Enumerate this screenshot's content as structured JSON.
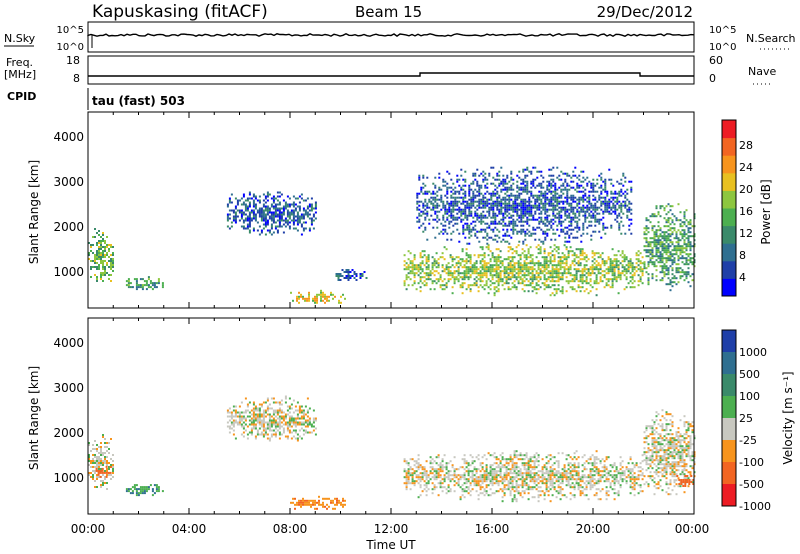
{
  "header": {
    "station": "Kapuskasing (fitACF)",
    "beam": "Beam 15",
    "date": "29/Dec/2012"
  },
  "nsky_panel": {
    "left_label": "N.Sky",
    "ticks": [
      "10^5",
      "10^0"
    ],
    "right_label": "N.Search",
    "right_ticks": [
      "10^5",
      "10^0"
    ]
  },
  "freq_panel": {
    "left_label_line1": "Freq.",
    "left_label_line2": "[MHz]",
    "ticks": [
      "18",
      "8"
    ],
    "right_label": "Nave",
    "right_ticks": [
      "60",
      "0"
    ]
  },
  "cpid_panel": {
    "left_label": "CPID",
    "text": "tau (fast) 503"
  },
  "x_axis": {
    "label": "Time UT",
    "ticks": [
      "00:00",
      "04:00",
      "08:00",
      "12:00",
      "16:00",
      "20:00",
      "00:00"
    ]
  },
  "power_panel": {
    "ylabel": "Slant Range [km]",
    "yticks": [
      "4000",
      "3000",
      "2000",
      "1000"
    ],
    "colorbar_label": "Power [dB]",
    "colorbar_ticks": [
      "28",
      "24",
      "20",
      "16",
      "12",
      "8",
      "4"
    ],
    "colors": [
      "#0000ff",
      "#1f3fa8",
      "#2f6f90",
      "#3a8a6a",
      "#4caf50",
      "#8dc63f",
      "#e8c020",
      "#f7941d",
      "#f26522",
      "#ed1c24"
    ]
  },
  "velocity_panel": {
    "ylabel": "Slant Range [km]",
    "yticks": [
      "4000",
      "3000",
      "2000",
      "1000"
    ],
    "colorbar_label": "Velocity [m s⁻¹]",
    "colorbar_ticks": [
      "1000",
      "500",
      "100",
      "25",
      "-25",
      "-100",
      "-500",
      "-1000"
    ],
    "colors": [
      "#1f3fa8",
      "#2f6f90",
      "#3a8a6a",
      "#4caf50",
      "#c8c8c0",
      "#f7941d",
      "#f26522",
      "#ed1c24"
    ]
  },
  "chart_data": [
    {
      "type": "heatmap",
      "title": "Power",
      "xlabel": "Time UT",
      "ylabel": "Slant Range [km]",
      "xlim": [
        0,
        24
      ],
      "ylim": [
        200,
        4500
      ],
      "colorbar": {
        "label": "Power [dB]",
        "range": [
          0,
          30
        ]
      },
      "regions": [
        {
          "t_start": 0.0,
          "t_end": 1.0,
          "range_lo": 700,
          "range_hi": 2000,
          "value": 14
        },
        {
          "t_start": 1.5,
          "t_end": 3.0,
          "range_lo": 600,
          "range_hi": 900,
          "value": 12
        },
        {
          "t_start": 5.5,
          "t_end": 9.0,
          "range_lo": 1800,
          "range_hi": 2800,
          "value": 6
        },
        {
          "t_start": 8.0,
          "t_end": 10.2,
          "range_lo": 300,
          "range_hi": 600,
          "value": 18
        },
        {
          "t_start": 9.8,
          "t_end": 11.0,
          "range_lo": 800,
          "range_hi": 1100,
          "value": 6
        },
        {
          "t_start": 12.5,
          "t_end": 22.0,
          "range_lo": 500,
          "range_hi": 1600,
          "value": 16
        },
        {
          "t_start": 13.0,
          "t_end": 21.5,
          "range_lo": 1600,
          "range_hi": 3300,
          "value": 6
        },
        {
          "t_start": 22.0,
          "t_end": 24.0,
          "range_lo": 600,
          "range_hi": 2500,
          "value": 12
        }
      ]
    },
    {
      "type": "heatmap",
      "title": "Velocity",
      "xlabel": "Time UT",
      "ylabel": "Slant Range [km]",
      "xlim": [
        0,
        24
      ],
      "ylim": [
        200,
        4500
      ],
      "colorbar": {
        "label": "Velocity [m s⁻¹]",
        "range": [
          -1000,
          1000
        ]
      },
      "regions": [
        {
          "t_start": 0.0,
          "t_end": 1.0,
          "range_lo": 700,
          "range_hi": 2000,
          "value": 0
        },
        {
          "t_start": 0.3,
          "t_end": 0.9,
          "range_lo": 1000,
          "range_hi": 1300,
          "value": -300
        },
        {
          "t_start": 1.5,
          "t_end": 3.0,
          "range_lo": 600,
          "range_hi": 900,
          "value": 80
        },
        {
          "t_start": 5.5,
          "t_end": 9.0,
          "range_lo": 1800,
          "range_hi": 2800,
          "value": 0
        },
        {
          "t_start": 8.0,
          "t_end": 10.2,
          "range_lo": 300,
          "range_hi": 600,
          "value": -80
        },
        {
          "t_start": 12.5,
          "t_end": 22.0,
          "range_lo": 500,
          "range_hi": 1600,
          "value": 0
        },
        {
          "t_start": 22.0,
          "t_end": 24.0,
          "range_lo": 600,
          "range_hi": 2500,
          "value": 0
        },
        {
          "t_start": 23.3,
          "t_end": 24.0,
          "range_lo": 800,
          "range_hi": 1100,
          "value": -400
        }
      ]
    }
  ]
}
